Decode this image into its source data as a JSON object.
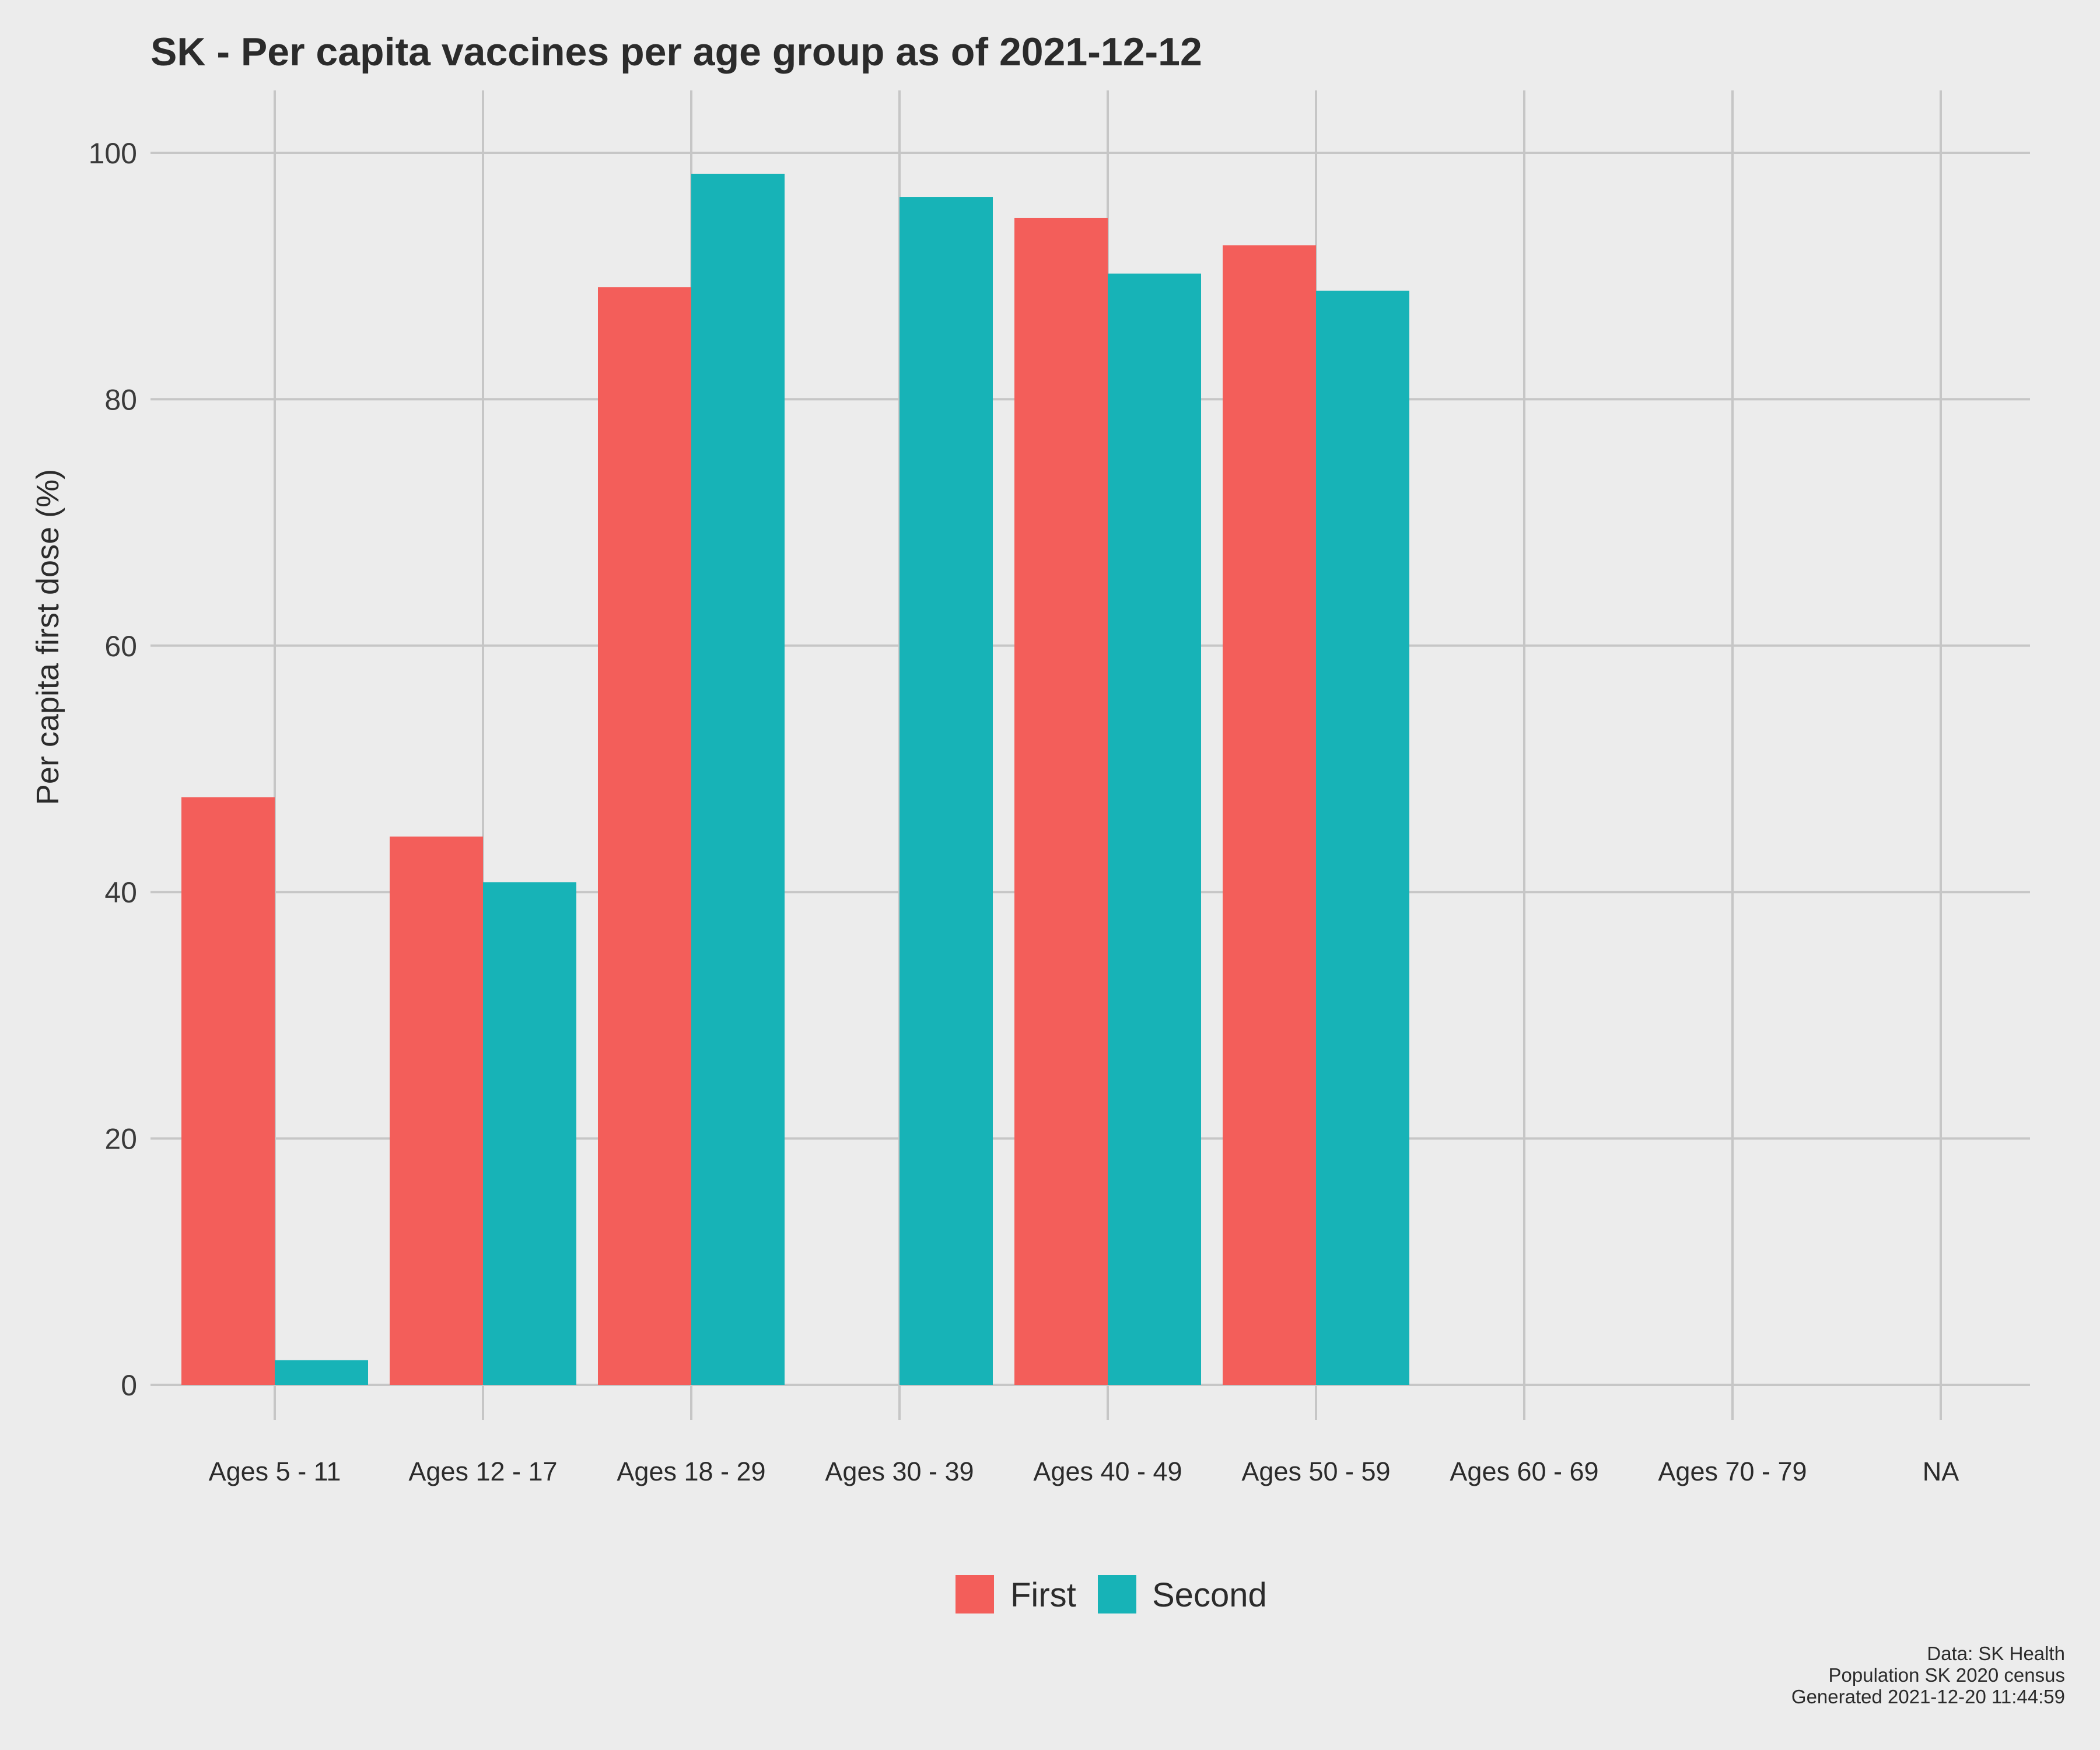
{
  "chart_data": {
    "type": "bar",
    "title": "SK - Per capita vaccines per age group as of 2021-12-12",
    "xlabel": "",
    "ylabel": "Per capita first dose (%)",
    "ylim": [
      0,
      100
    ],
    "yticks": [
      0,
      20,
      40,
      60,
      80,
      100
    ],
    "categories": [
      "Ages 5 - 11",
      "Ages 12 - 17",
      "Ages 18 - 29",
      "Ages 30 - 39",
      "Ages 40 - 49",
      "Ages 50 - 59",
      "Ages 60 - 69",
      "Ages 70 - 79",
      "NA"
    ],
    "series": [
      {
        "name": "First",
        "color": "#f35e5a",
        "values": [
          47.7,
          44.5,
          89.1,
          null,
          94.7,
          92.5,
          null,
          null,
          null
        ]
      },
      {
        "name": "Second",
        "color": "#17b3b7",
        "values": [
          2.0,
          40.8,
          98.3,
          96.4,
          90.2,
          88.8,
          null,
          null,
          null
        ]
      }
    ],
    "grid": true,
    "legend_position": "bottom",
    "caption": [
      "Data: SK Health",
      "Population SK 2020 census",
      "Generated 2021-12-20 11:44:59"
    ]
  }
}
